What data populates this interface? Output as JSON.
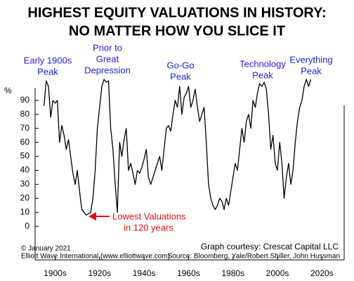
{
  "chart_data": {
    "type": "line",
    "title": [
      "HIGHEST EQUITY VALUATIONS IN HISTORY:",
      "NO MATTER HOW YOU SLICE IT"
    ],
    "y_label": "%",
    "annotations": [
      [
        "Early 1900s",
        "Peak"
      ],
      [
        "Prior to",
        "Great",
        "Depression"
      ],
      [
        "Go-Go",
        "Peak"
      ],
      [
        "Technology",
        "Peak"
      ],
      [
        "Everything",
        "Peak"
      ]
    ],
    "low_annotation": [
      "Lowest Valuations",
      "in 120 years"
    ],
    "copyright": [
      "© January 2021",
      "Elliott Wave International (www.elliottwave.com)"
    ],
    "credit": "Graph courtesy: Crescat Capital LLC",
    "source": "Source: Bloomberg, Yale/Robert Shiller, John Hussman",
    "color": "#000000",
    "x": [
      1900,
      1901,
      1902,
      1903,
      1904,
      1905,
      1906,
      1907,
      1908,
      1909,
      1910,
      1911,
      1912,
      1913,
      1914,
      1915,
      1916,
      1917,
      1918,
      1919,
      1920,
      1921,
      1922,
      1923,
      1924,
      1925,
      1926,
      1927,
      1928,
      1929,
      1930,
      1931,
      1932,
      1933,
      1934,
      1935,
      1936,
      1937,
      1938,
      1939,
      1940,
      1941,
      1942,
      1943,
      1944,
      1945,
      1946,
      1947,
      1948,
      1949,
      1950,
      1951,
      1952,
      1953,
      1954,
      1955,
      1956,
      1957,
      1958,
      1959,
      1960,
      1961,
      1962,
      1963,
      1964,
      1965,
      1966,
      1967,
      1968,
      1969,
      1970,
      1971,
      1972,
      1973,
      1974,
      1975,
      1976,
      1977,
      1978,
      1979,
      1980,
      1981,
      1982,
      1983,
      1984,
      1985,
      1986,
      1987,
      1988,
      1989,
      1990,
      1991,
      1992,
      1993,
      1994,
      1995,
      1996,
      1997,
      1998,
      1999,
      2000,
      2001,
      2002,
      2003,
      2004,
      2005,
      2006,
      2007,
      2008,
      2009,
      2010,
      2011,
      2012,
      2013,
      2014,
      2015,
      2016,
      2017,
      2018,
      2019,
      2020
    ],
    "values": [
      86,
      104,
      100,
      78,
      90,
      88,
      90,
      60,
      72,
      65,
      55,
      62,
      50,
      38,
      30,
      40,
      25,
      12,
      10,
      8,
      9,
      10,
      20,
      40,
      70,
      85,
      100,
      105,
      103,
      104,
      70,
      55,
      30,
      10,
      60,
      50,
      62,
      70,
      40,
      45,
      38,
      30,
      40,
      38,
      42,
      48,
      55,
      35,
      30,
      35,
      40,
      45,
      50,
      40,
      55,
      70,
      72,
      68,
      80,
      90,
      85,
      100,
      80,
      92,
      95,
      100,
      85,
      90,
      98,
      85,
      75,
      80,
      85,
      60,
      30,
      20,
      15,
      12,
      15,
      20,
      18,
      12,
      20,
      15,
      25,
      35,
      45,
      40,
      55,
      70,
      60,
      75,
      80,
      70,
      90,
      85,
      95,
      102,
      100,
      103,
      98,
      80,
      55,
      65,
      45,
      40,
      60,
      45,
      20,
      35,
      45,
      30,
      40,
      60,
      75,
      85,
      90,
      100,
      105,
      100,
      105
    ],
    "xlim": [
      1896,
      2035
    ],
    "ylim": [
      -24,
      106
    ],
    "yticks": [
      0,
      10,
      20,
      30,
      40,
      50,
      60,
      70,
      80,
      90
    ],
    "xticks": [
      {
        "value": 1905,
        "label": "1900s"
      },
      {
        "value": 1925,
        "label": "1920s"
      },
      {
        "value": 1945,
        "label": "1940s"
      },
      {
        "value": 1965,
        "label": "1960s"
      },
      {
        "value": 1985,
        "label": "1980s"
      },
      {
        "value": 2005,
        "label": "2000s"
      },
      {
        "value": 2025,
        "label": "2020s"
      }
    ]
  }
}
